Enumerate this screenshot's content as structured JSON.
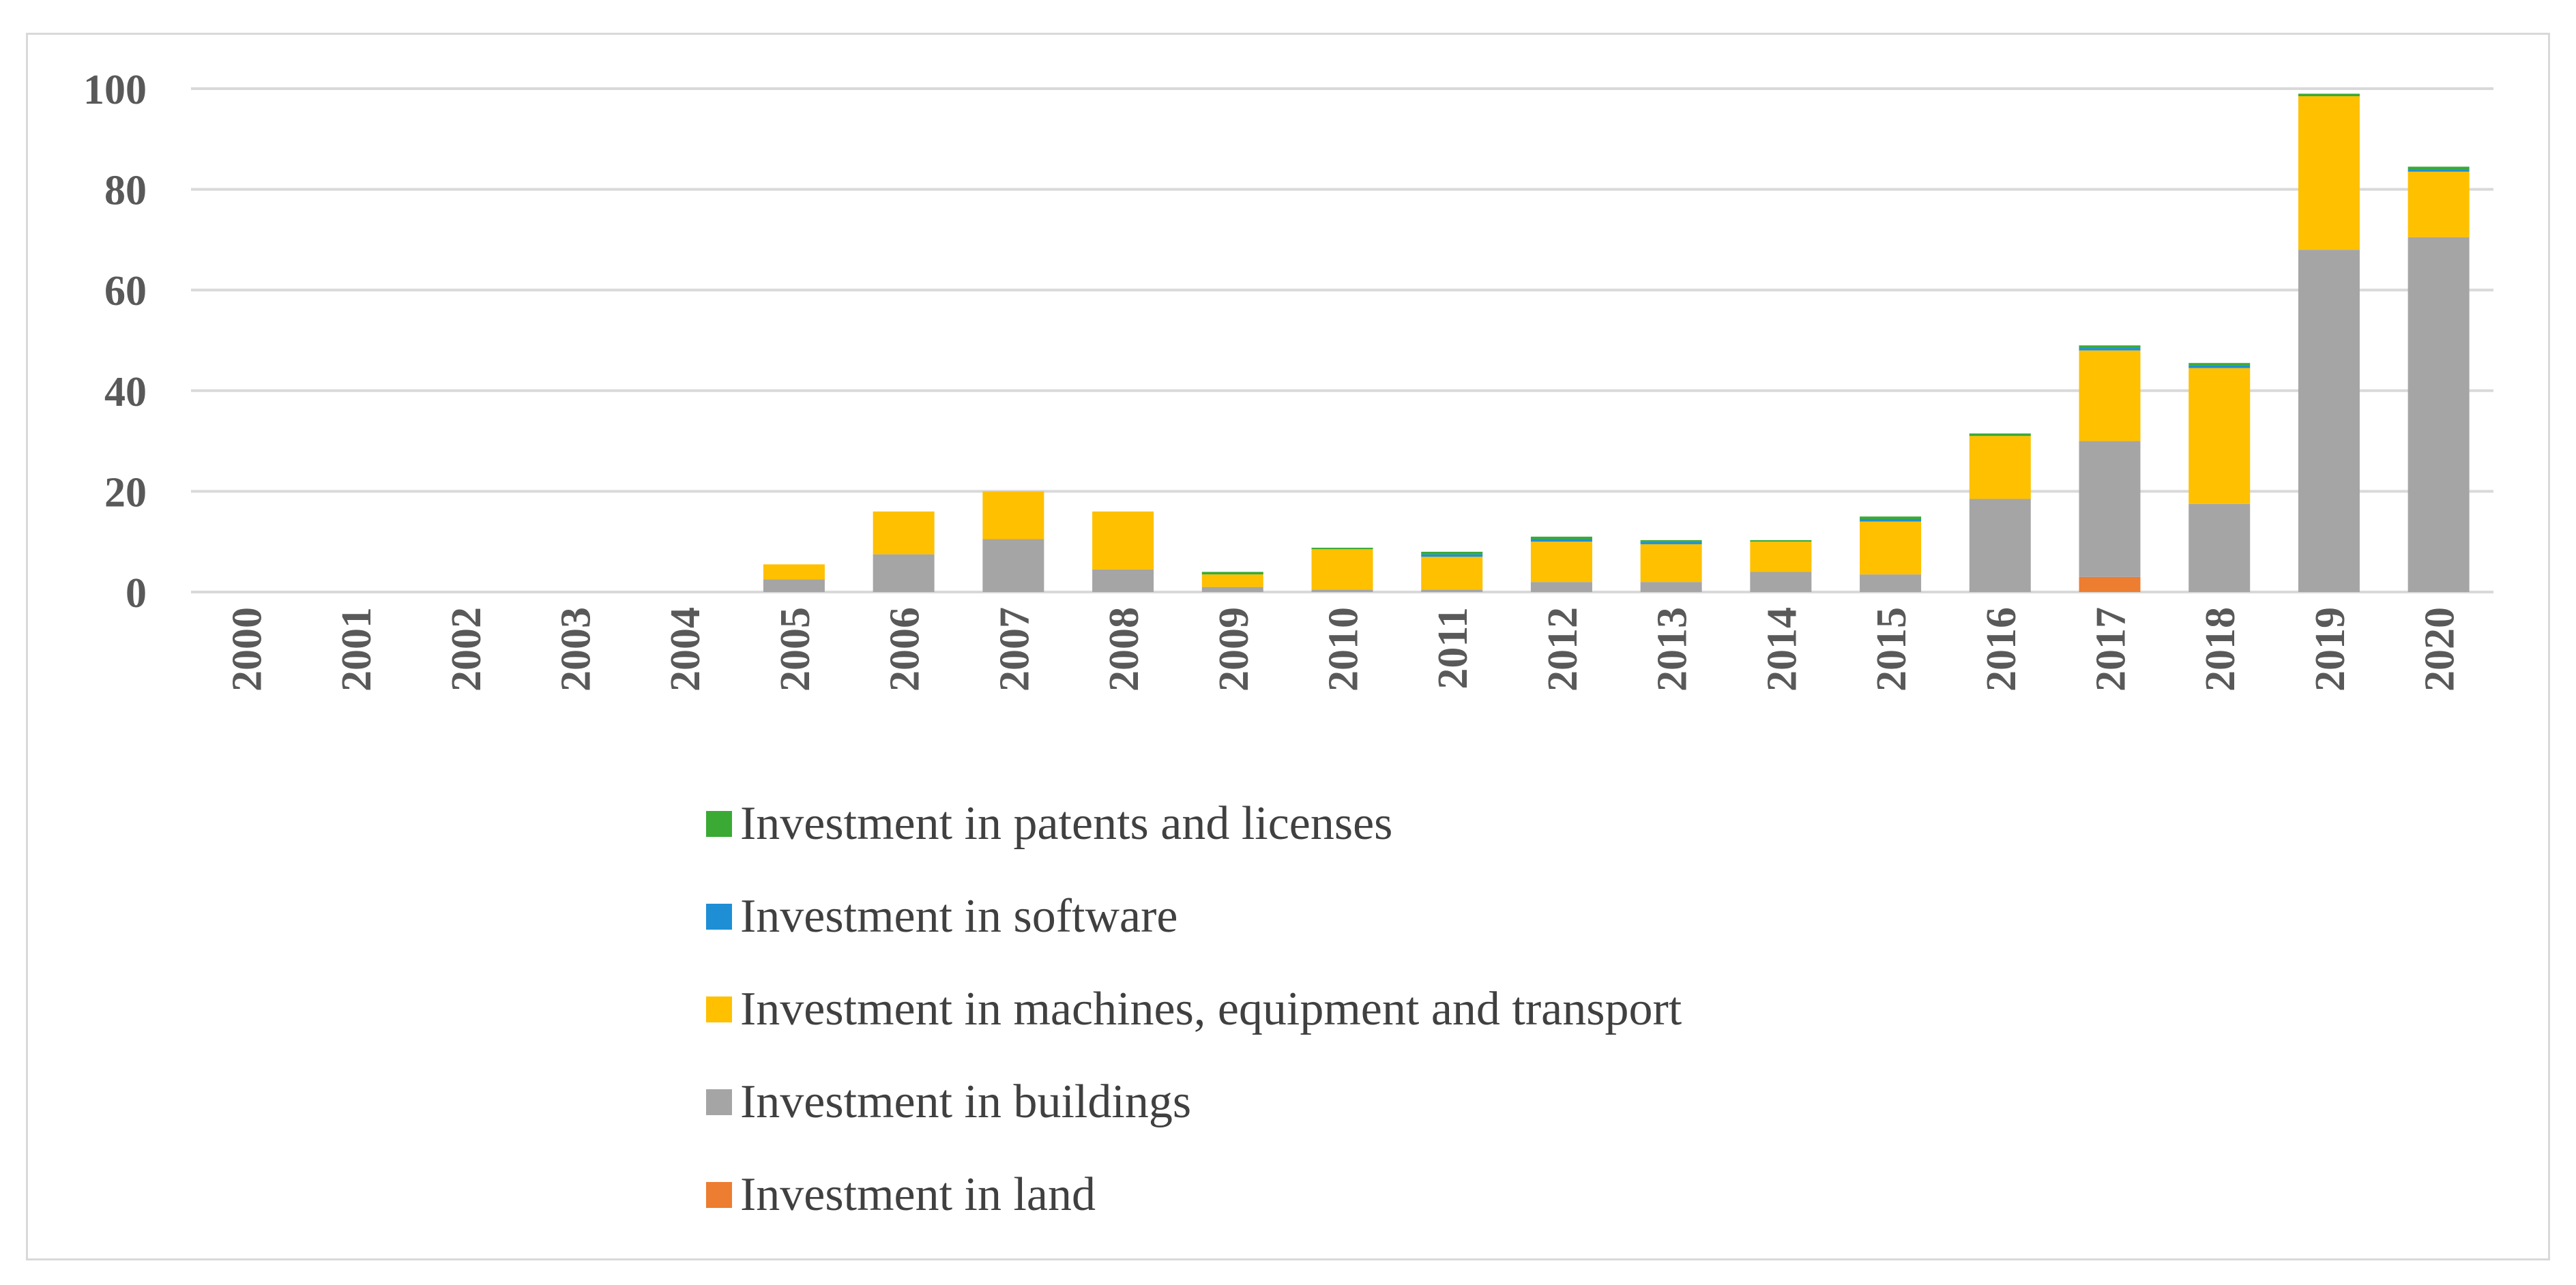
{
  "chart_data": {
    "type": "bar",
    "stacked": true,
    "title": "",
    "xlabel": "",
    "ylabel": "",
    "ylim": [
      0,
      100
    ],
    "yticks": [
      0,
      20,
      40,
      60,
      80,
      100
    ],
    "grid": true,
    "legend_position": "bottom",
    "categories": [
      "2000",
      "2001",
      "2002",
      "2003",
      "2004",
      "2005",
      "2006",
      "2007",
      "2008",
      "2009",
      "2010",
      "2011",
      "2012",
      "2013",
      "2014",
      "2015",
      "2016",
      "2017",
      "2018",
      "2019",
      "2020"
    ],
    "series": [
      {
        "name": "Investment in land",
        "color": "#ED7D31",
        "values": [
          0,
          0,
          0,
          0,
          0,
          0,
          0,
          0,
          0,
          0,
          0,
          0,
          0,
          0,
          0,
          0,
          0,
          3,
          0,
          0,
          0
        ]
      },
      {
        "name": "Investment in buildings",
        "color": "#A5A5A5",
        "values": [
          0,
          0,
          0,
          0,
          0,
          2.5,
          7.5,
          10.5,
          4.5,
          1,
          0.5,
          0.5,
          2,
          2,
          4,
          3.5,
          18.5,
          27,
          17.5,
          68,
          70.5
        ]
      },
      {
        "name": "Investment in machines, equipment and transport",
        "color": "#FFC000",
        "values": [
          0,
          0,
          0,
          0,
          0,
          3,
          8.5,
          9.5,
          11.5,
          2.5,
          8,
          6.5,
          8,
          7.5,
          6,
          10.5,
          12.5,
          18,
          27,
          30.5,
          13
        ]
      },
      {
        "name": "Investment in software",
        "color": "#1E8FD5",
        "values": [
          0,
          0,
          0,
          0,
          0,
          0,
          0,
          0,
          0,
          0,
          0,
          0.5,
          0.5,
          0.5,
          0,
          0.5,
          0,
          0.5,
          0.5,
          0,
          0.5
        ]
      },
      {
        "name": "Investment in patents and licenses",
        "color": "#3AAA35",
        "values": [
          0,
          0,
          0,
          0,
          0,
          0,
          0,
          0,
          0,
          0.5,
          0.3,
          0.5,
          0.5,
          0.3,
          0.3,
          0.5,
          0.5,
          0.5,
          0.5,
          0.5,
          0.5
        ]
      }
    ],
    "legend_order": [
      4,
      3,
      2,
      1,
      0
    ]
  }
}
